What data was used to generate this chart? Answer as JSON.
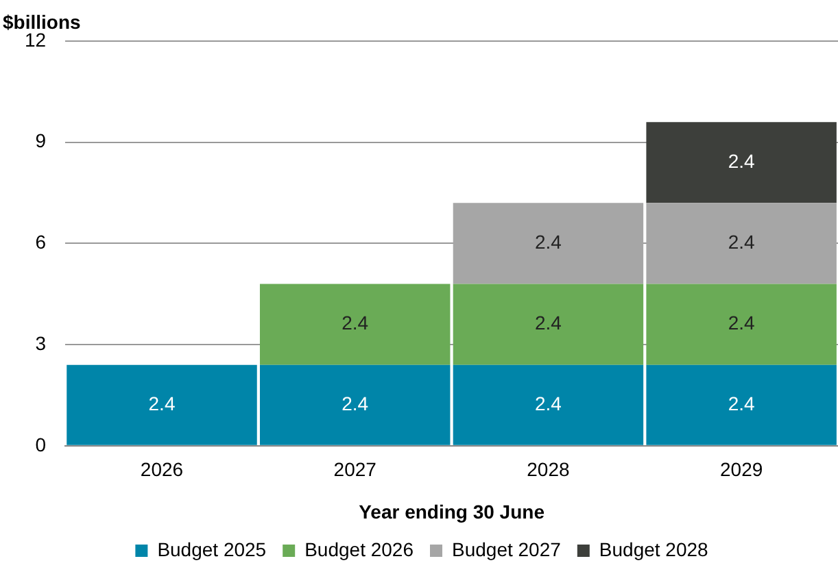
{
  "chart_data": {
    "type": "bar",
    "ylabel": "$billions",
    "xlabel": "Year ending 30 June",
    "categories": [
      "2026",
      "2027",
      "2028",
      "2029"
    ],
    "stacked": true,
    "data_labels": true,
    "grid": "y",
    "legend": "bottom",
    "ylim": [
      0,
      12
    ],
    "yticks": [
      0,
      3,
      6,
      9,
      12
    ],
    "series": [
      {
        "name": "Budget 2025",
        "color": "#0085a9",
        "values": [
          2.4,
          2.4,
          2.4,
          2.4
        ]
      },
      {
        "name": "Budget 2026",
        "color": "#6aab56",
        "values": [
          null,
          2.4,
          2.4,
          2.4
        ]
      },
      {
        "name": "Budget 2027",
        "color": "#a6a6a6",
        "values": [
          null,
          null,
          2.4,
          2.4
        ]
      },
      {
        "name": "Budget 2028",
        "color": "#3d3f3b",
        "values": [
          null,
          null,
          null,
          2.4
        ]
      }
    ]
  }
}
